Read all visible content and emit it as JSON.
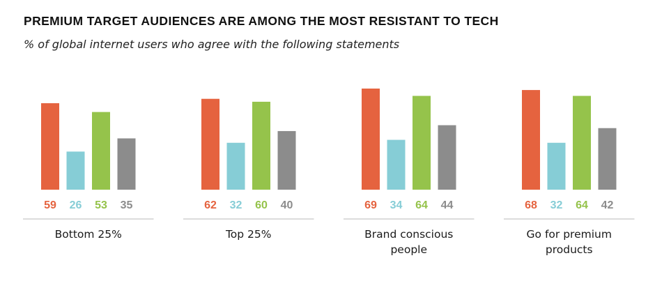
{
  "chart_data": {
    "type": "bar",
    "title": "PREMIUM TARGET AUDIENCES ARE AMONG THE MOST RESISTANT TO TECH",
    "subtitle": "% of global internet users who agree with the following statements",
    "categories": [
      [
        "Bottom 25%"
      ],
      [
        "Top 25%"
      ],
      [
        "Brand conscious",
        "people"
      ],
      [
        "Go for premium",
        "products"
      ]
    ],
    "series": [
      {
        "color": "#E5633F",
        "values": [
          59,
          62,
          69,
          68
        ]
      },
      {
        "color": "#86CDD6",
        "values": [
          26,
          32,
          34,
          32
        ]
      },
      {
        "color": "#95C34B",
        "values": [
          53,
          60,
          64,
          64
        ]
      },
      {
        "color": "#8C8C8C",
        "values": [
          35,
          40,
          44,
          42
        ]
      }
    ],
    "ylim": [
      0,
      69
    ],
    "grid": false,
    "legend": "none"
  }
}
